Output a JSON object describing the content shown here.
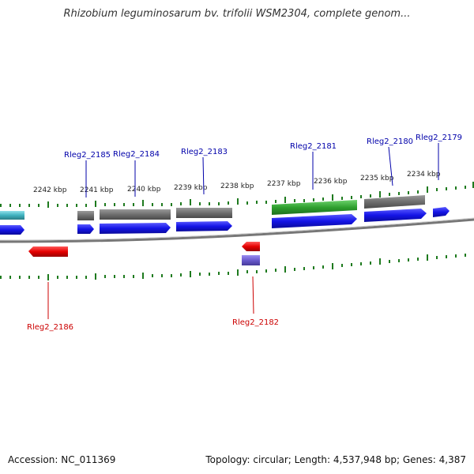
{
  "title": "Rhizobium leguminosarum bv. trifolii WSM2304, complete genom...",
  "footer": {
    "accession": "Accession: NC_011369",
    "summary": "Topology: circular; Length: 4,537,948 bp; Genes: 4,387"
  },
  "colors": {
    "forward_gene": "#1414e6",
    "reverse_gene": "#e60000",
    "cds_gray": "#6e6e6e",
    "green_feature": "#2ea02e",
    "teal_feature": "#3fb2bf",
    "purple_feature": "#6a5acd",
    "tick": "#1e7a1e",
    "forward_label": "#0000aa",
    "reverse_label": "#cc0000",
    "backbone": "#777777"
  },
  "scale": {
    "unit": "kbp",
    "ticks": [
      {
        "label": "2242 kbp"
      },
      {
        "label": "2241 kbp"
      },
      {
        "label": "2240 kbp"
      },
      {
        "label": "2239 kbp"
      },
      {
        "label": "2238 kbp"
      },
      {
        "label": "2237 kbp"
      },
      {
        "label": "2236 kbp"
      },
      {
        "label": "2235 kbp"
      },
      {
        "label": "2234 kbp"
      }
    ]
  },
  "genes": [
    {
      "label": "Rleg2_2185",
      "strand": "forward"
    },
    {
      "label": "Rleg2_2184",
      "strand": "forward"
    },
    {
      "label": "Rleg2_2183",
      "strand": "forward"
    },
    {
      "label": "Rleg2_2181",
      "strand": "forward"
    },
    {
      "label": "Rleg2_2180",
      "strand": "forward"
    },
    {
      "label": "Rleg2_2179",
      "strand": "forward"
    },
    {
      "label": "Rleg2_2186",
      "strand": "reverse"
    },
    {
      "label": "Rleg2_2182",
      "strand": "reverse"
    }
  ]
}
